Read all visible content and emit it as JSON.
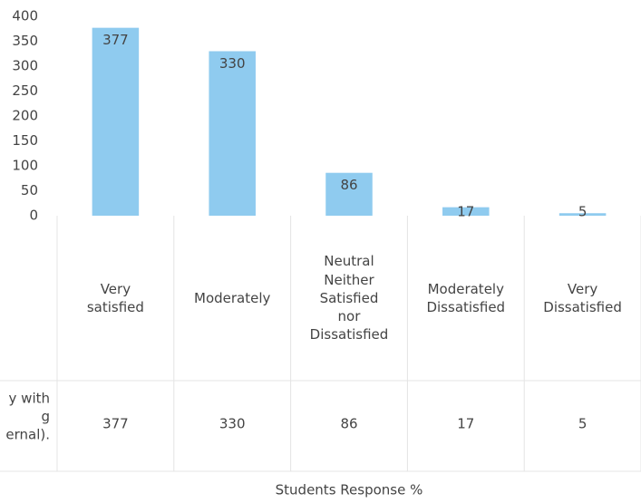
{
  "chart_data": {
    "type": "bar",
    "categories": [
      "Very satisfied",
      "Moderately",
      "Neutral Neither Satisfied nor Dissatisfied",
      "Moderately Dissatisfied",
      "Very Dissatisfied"
    ],
    "values": [
      377,
      330,
      86,
      17,
      5
    ],
    "color": "#8fcbef",
    "ylim": [
      0,
      400
    ],
    "yticks": [
      0,
      50,
      100,
      150,
      200,
      250,
      300,
      350,
      400
    ],
    "grid": false,
    "table_row_label": [
      "y with",
      "g",
      "ernal)."
    ],
    "x_label": "Students Response %"
  }
}
